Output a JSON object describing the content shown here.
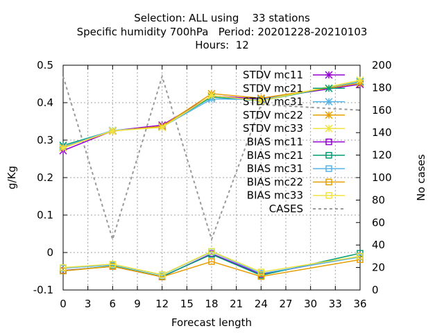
{
  "chart_data": {
    "type": "line",
    "title_lines": [
      "Selection: ALL using    33 stations",
      "Specific humidity 700hPa   Period: 20201228-20210103",
      "Hours:  12"
    ],
    "xlabel": "Forecast length",
    "ylabel": "g/Kg",
    "y2label": "No cases",
    "xlim": [
      0,
      36
    ],
    "ylim": [
      -0.1,
      0.5
    ],
    "y2lim": [
      0,
      200
    ],
    "xticks": [
      0,
      3,
      6,
      9,
      12,
      15,
      18,
      21,
      24,
      27,
      30,
      33,
      36
    ],
    "yticks": [
      -0.1,
      0,
      0.1,
      0.2,
      0.3,
      0.4,
      0.5
    ],
    "y2ticks": [
      0,
      20,
      40,
      60,
      80,
      100,
      120,
      140,
      160,
      180,
      200
    ],
    "grid": true,
    "legend_position": "top-right",
    "x": [
      0,
      6,
      12,
      18,
      24,
      36
    ],
    "series": [
      {
        "name": "STDV mc11",
        "color": "#9400d3",
        "marker": "star",
        "values": [
          0.272,
          0.325,
          0.34,
          0.418,
          0.41,
          0.449
        ]
      },
      {
        "name": "STDV mc21",
        "color": "#009e73",
        "marker": "star",
        "values": [
          0.286,
          0.325,
          0.336,
          0.415,
          0.405,
          0.456
        ]
      },
      {
        "name": "STDV mc31",
        "color": "#56b4e9",
        "marker": "star",
        "values": [
          0.282,
          0.326,
          0.335,
          0.41,
          0.408,
          0.455
        ]
      },
      {
        "name": "STDV mc22",
        "color": "#e69f00",
        "marker": "star",
        "values": [
          0.28,
          0.324,
          0.337,
          0.424,
          0.412,
          0.452
        ]
      },
      {
        "name": "STDV mc33",
        "color": "#f0e442",
        "marker": "star",
        "values": [
          0.279,
          0.325,
          0.334,
          0.419,
          0.405,
          0.46
        ]
      },
      {
        "name": "BIAS mc11",
        "color": "#9400d3",
        "marker": "square",
        "values": [
          -0.048,
          -0.037,
          -0.065,
          -0.003,
          -0.058,
          -0.01
        ]
      },
      {
        "name": "BIAS mc21",
        "color": "#009e73",
        "marker": "square",
        "values": [
          -0.049,
          -0.036,
          -0.064,
          -0.005,
          -0.061,
          -0.002
        ]
      },
      {
        "name": "BIAS mc31",
        "color": "#56b4e9",
        "marker": "square",
        "values": [
          -0.042,
          -0.033,
          -0.06,
          0.002,
          -0.056,
          -0.012
        ]
      },
      {
        "name": "BIAS mc22",
        "color": "#e69f00",
        "marker": "square",
        "values": [
          -0.049,
          -0.037,
          -0.065,
          -0.024,
          -0.064,
          -0.019
        ]
      },
      {
        "name": "BIAS mc33",
        "color": "#f0e442",
        "marker": "square",
        "values": [
          -0.04,
          -0.031,
          -0.059,
          0.003,
          -0.052,
          -0.01
        ]
      }
    ],
    "cases": {
      "name": "CASES",
      "color": "#999999",
      "axis": "y2",
      "x": [
        0,
        6,
        12,
        18,
        24,
        36
      ],
      "values": [
        190,
        45,
        190,
        45,
        165,
        160
      ]
    }
  }
}
